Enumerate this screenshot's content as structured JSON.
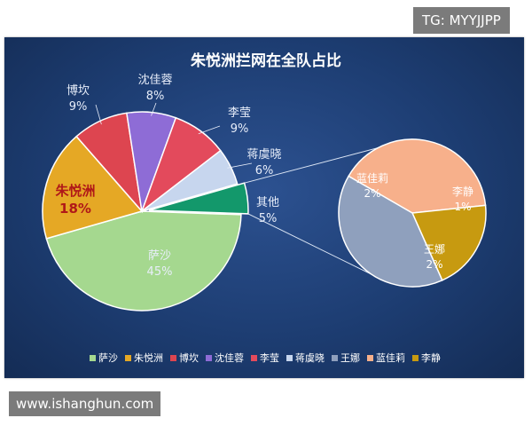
{
  "watermarks": {
    "top": "TG: MYYJJPP",
    "bottom": "www.ishanghun.com"
  },
  "chart_data": {
    "type": "pie",
    "title": "朱悦洲拦网在全队占比",
    "main_pie": {
      "categories": [
        "萨沙",
        "朱悦洲",
        "博坎",
        "沈佳蓉",
        "李莹",
        "蒋虞晓",
        "其他"
      ],
      "values": [
        45,
        18,
        9,
        8,
        9,
        6,
        5
      ],
      "labels": [
        "45%",
        "18%",
        "9%",
        "8%",
        "9%",
        "6%",
        "5%"
      ],
      "colors": [
        "#a5d88f",
        "#e5a825",
        "#dd4550",
        "#8e6cd6",
        "#e34a5c",
        "#c7d6ee",
        "#13986b"
      ],
      "highlight": "朱悦洲",
      "exploded": "其他"
    },
    "sub_pie": {
      "of": "其他",
      "categories": [
        "蓝佳莉",
        "李静",
        "王娜"
      ],
      "values": [
        2,
        1,
        2
      ],
      "labels": [
        "2%",
        "1%",
        "2%"
      ],
      "colors": [
        "#f7b08b",
        "#c79a10",
        "#8fa0bd"
      ]
    },
    "legend": {
      "position": "bottom",
      "items": [
        "萨沙",
        "朱悦洲",
        "博坎",
        "沈佳蓉",
        "李莹",
        "蒋虞晓",
        "王娜",
        "蓝佳莉",
        "李静"
      ],
      "colors": [
        "#a5d88f",
        "#e5a825",
        "#dd4550",
        "#8e6cd6",
        "#e34a5c",
        "#c7d6ee",
        "#8fa0bd",
        "#f7b08b",
        "#c79a10"
      ]
    }
  }
}
